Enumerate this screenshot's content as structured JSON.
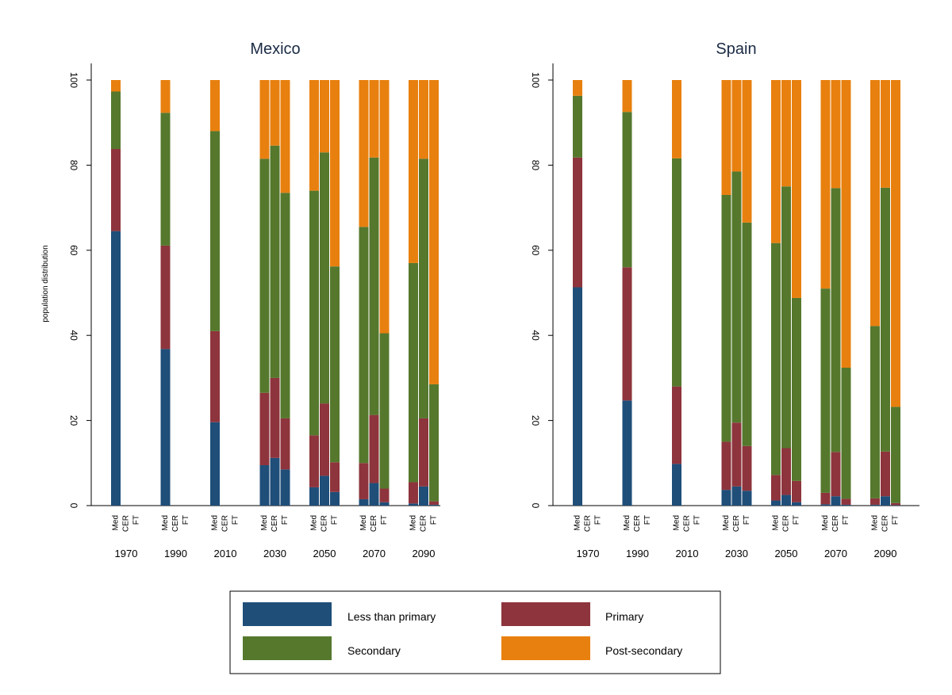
{
  "chart_data": {
    "type": "bar",
    "stacked": true,
    "ylabel": "population distribution",
    "ylim": [
      0,
      100
    ],
    "yticks": [
      0,
      20,
      40,
      60,
      80,
      100
    ],
    "colors": {
      "Less than primary": "#1f4e79",
      "Primary": "#8e343c",
      "Secondary": "#55782d",
      "Post-secondary": "#e8800f"
    },
    "legend": {
      "placement": "bottom",
      "entries": [
        "Less than primary",
        "Primary",
        "Secondary",
        "Post-secondary"
      ]
    },
    "years": [
      "1970",
      "1990",
      "2010",
      "2030",
      "2050",
      "2070",
      "2090"
    ],
    "scenarios": [
      "Med",
      "CER",
      "FT"
    ],
    "series_order": [
      "Less than primary",
      "Primary",
      "Secondary",
      "Post-secondary"
    ],
    "panels": [
      {
        "title": "Mexico",
        "bars": [
          {
            "year": "1970",
            "scenario": "Med",
            "values": [
              64.5,
              19.3,
              13.5,
              2.7
            ]
          },
          {
            "year": "1990",
            "scenario": "Med",
            "values": [
              36.8,
              24.3,
              31.2,
              7.7
            ]
          },
          {
            "year": "2010",
            "scenario": "Med",
            "values": [
              19.6,
              21.4,
              47.0,
              12.0
            ]
          },
          {
            "year": "2030",
            "scenario": "Med",
            "values": [
              9.5,
              17.0,
              55.0,
              18.5
            ]
          },
          {
            "year": "2030",
            "scenario": "CER",
            "values": [
              11.2,
              18.8,
              54.6,
              15.4
            ]
          },
          {
            "year": "2030",
            "scenario": "FT",
            "values": [
              8.5,
              12.0,
              53.0,
              26.5
            ]
          },
          {
            "year": "2050",
            "scenario": "Med",
            "values": [
              4.3,
              12.2,
              57.5,
              26.0
            ]
          },
          {
            "year": "2050",
            "scenario": "CER",
            "values": [
              7.0,
              17.0,
              59.0,
              17.0
            ]
          },
          {
            "year": "2050",
            "scenario": "FT",
            "values": [
              3.2,
              7.0,
              46.0,
              43.8
            ]
          },
          {
            "year": "2070",
            "scenario": "Med",
            "values": [
              1.5,
              8.5,
              55.5,
              34.5
            ]
          },
          {
            "year": "2070",
            "scenario": "CER",
            "values": [
              5.3,
              16.0,
              60.5,
              18.2
            ]
          },
          {
            "year": "2070",
            "scenario": "FT",
            "values": [
              0.8,
              3.2,
              36.5,
              59.5
            ]
          },
          {
            "year": "2090",
            "scenario": "Med",
            "values": [
              0.5,
              5.0,
              51.5,
              43.0
            ]
          },
          {
            "year": "2090",
            "scenario": "CER",
            "values": [
              4.5,
              16.0,
              61.0,
              18.5
            ]
          },
          {
            "year": "2090",
            "scenario": "FT",
            "values": [
              0.2,
              0.8,
              27.5,
              71.5
            ]
          }
        ]
      },
      {
        "title": "Spain",
        "bars": [
          {
            "year": "1970",
            "scenario": "Med",
            "values": [
              51.3,
              30.5,
              14.5,
              3.7
            ]
          },
          {
            "year": "1990",
            "scenario": "Med",
            "values": [
              24.7,
              31.3,
              36.5,
              7.5
            ]
          },
          {
            "year": "2010",
            "scenario": "Med",
            "values": [
              9.8,
              18.2,
              53.6,
              18.4
            ]
          },
          {
            "year": "2030",
            "scenario": "Med",
            "values": [
              3.7,
              11.3,
              58.0,
              27.0
            ]
          },
          {
            "year": "2030",
            "scenario": "CER",
            "values": [
              4.5,
              15.0,
              59.0,
              21.5
            ]
          },
          {
            "year": "2030",
            "scenario": "FT",
            "values": [
              3.5,
              10.5,
              52.5,
              33.5
            ]
          },
          {
            "year": "2050",
            "scenario": "Med",
            "values": [
              1.2,
              6.0,
              54.5,
              38.3
            ]
          },
          {
            "year": "2050",
            "scenario": "CER",
            "values": [
              2.5,
              11.0,
              61.5,
              25.0
            ]
          },
          {
            "year": "2050",
            "scenario": "FT",
            "values": [
              0.8,
              5.0,
              43.0,
              51.2
            ]
          },
          {
            "year": "2070",
            "scenario": "Med",
            "values": [
              0.3,
              2.7,
              48.0,
              49.0
            ]
          },
          {
            "year": "2070",
            "scenario": "CER",
            "values": [
              2.2,
              10.4,
              62.0,
              25.4
            ]
          },
          {
            "year": "2070",
            "scenario": "FT",
            "values": [
              0.2,
              1.4,
              30.8,
              67.6
            ]
          },
          {
            "year": "2090",
            "scenario": "Med",
            "values": [
              0.2,
              1.5,
              40.5,
              57.8
            ]
          },
          {
            "year": "2090",
            "scenario": "CER",
            "values": [
              2.2,
              10.5,
              62.0,
              25.3
            ]
          },
          {
            "year": "2090",
            "scenario": "FT",
            "values": [
              0.1,
              0.5,
              22.6,
              76.8
            ]
          }
        ]
      }
    ]
  }
}
